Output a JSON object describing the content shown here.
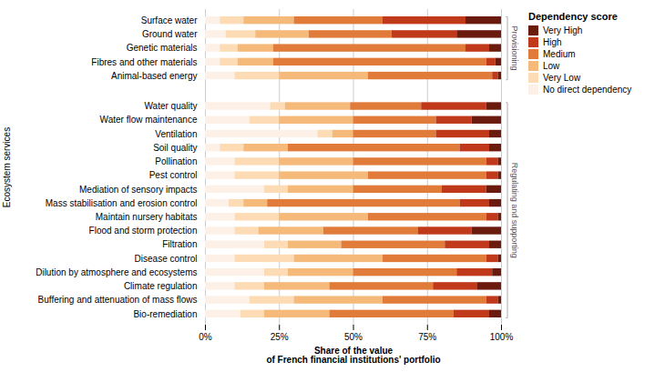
{
  "chart_data": {
    "type": "bar",
    "orientation": "horizontal",
    "stacked": true,
    "categories": [
      "Surface water",
      "Ground water",
      "Genetic materials",
      "Fibres and other materials",
      "Animal-based energy",
      "Water quality",
      "Water flow maintenance",
      "Ventilation",
      "Soil quality",
      "Pollination",
      "Pest control",
      "Mediation of sensory impacts",
      "Mass stabilisation and erosion control",
      "Maintain nursery habitats",
      "Flood and storm protection",
      "Filtration",
      "Disease control",
      "Dilution by atmosphere and ecosystems",
      "Climate regulation",
      "Buffering and attenuation of mass flows",
      "Bio-remediation"
    ],
    "groups": [
      {
        "label": "Provisioning",
        "categories": [
          "Surface water",
          "Ground water",
          "Genetic materials",
          "Fibres and other materials",
          "Animal-based energy"
        ]
      },
      {
        "label": "Regulating and supporting",
        "categories": [
          "Water quality",
          "Water flow maintenance",
          "Ventilation",
          "Soil quality",
          "Pollination",
          "Pest control",
          "Mediation of sensory impacts",
          "Mass stabilisation and erosion control",
          "Maintain nursery habitats",
          "Flood and storm protection",
          "Filtration",
          "Disease control",
          "Dilution by atmosphere and ecosystems",
          "Climate regulation",
          "Buffering and attenuation of mass flows",
          "Bio-remediation"
        ]
      }
    ],
    "series": [
      {
        "name": "No direct dependency",
        "color": "#fdf0e6",
        "values": [
          5,
          7,
          5,
          5,
          10,
          22,
          15,
          38,
          5,
          10,
          10,
          20,
          8,
          10,
          10,
          20,
          10,
          20,
          10,
          15,
          12
        ]
      },
      {
        "name": "Very Low",
        "color": "#fddcb5",
        "values": [
          8,
          10,
          6,
          6,
          15,
          5,
          10,
          5,
          8,
          15,
          15,
          8,
          5,
          15,
          8,
          8,
          20,
          8,
          10,
          15,
          8
        ]
      },
      {
        "name": "Low",
        "color": "#f5b97a",
        "values": [
          17,
          18,
          12,
          12,
          30,
          22,
          25,
          7,
          15,
          25,
          30,
          22,
          8,
          30,
          22,
          18,
          30,
          22,
          22,
          30,
          22
        ]
      },
      {
        "name": "Medium",
        "color": "#e07b39",
        "values": [
          30,
          28,
          65,
          72,
          42,
          24,
          28,
          28,
          58,
          45,
          40,
          30,
          65,
          40,
          32,
          35,
          35,
          35,
          35,
          35,
          42
        ]
      },
      {
        "name": "High",
        "color": "#c0391b",
        "values": [
          28,
          22,
          8,
          3,
          2,
          22,
          12,
          18,
          10,
          4,
          4,
          15,
          10,
          4,
          18,
          15,
          4,
          12,
          15,
          4,
          12
        ]
      },
      {
        "name": "Very High",
        "color": "#6b1a0e",
        "values": [
          12,
          15,
          4,
          2,
          1,
          5,
          10,
          4,
          4,
          1,
          1,
          5,
          4,
          1,
          10,
          4,
          1,
          3,
          8,
          1,
          4
        ]
      }
    ],
    "xlabel": "Share of the value\nof French financial institutions' portfolio",
    "ylabel": "Ecosystem services",
    "xlim": [
      0,
      100
    ],
    "xticks": [
      {
        "value": 0,
        "label": "0%"
      },
      {
        "value": 25,
        "label": "25%"
      },
      {
        "value": 50,
        "label": "50%"
      },
      {
        "value": 75,
        "label": "75%"
      },
      {
        "value": 100,
        "label": "100%"
      }
    ],
    "grid": true,
    "legend": "right",
    "legend_title": "Dependency score"
  }
}
